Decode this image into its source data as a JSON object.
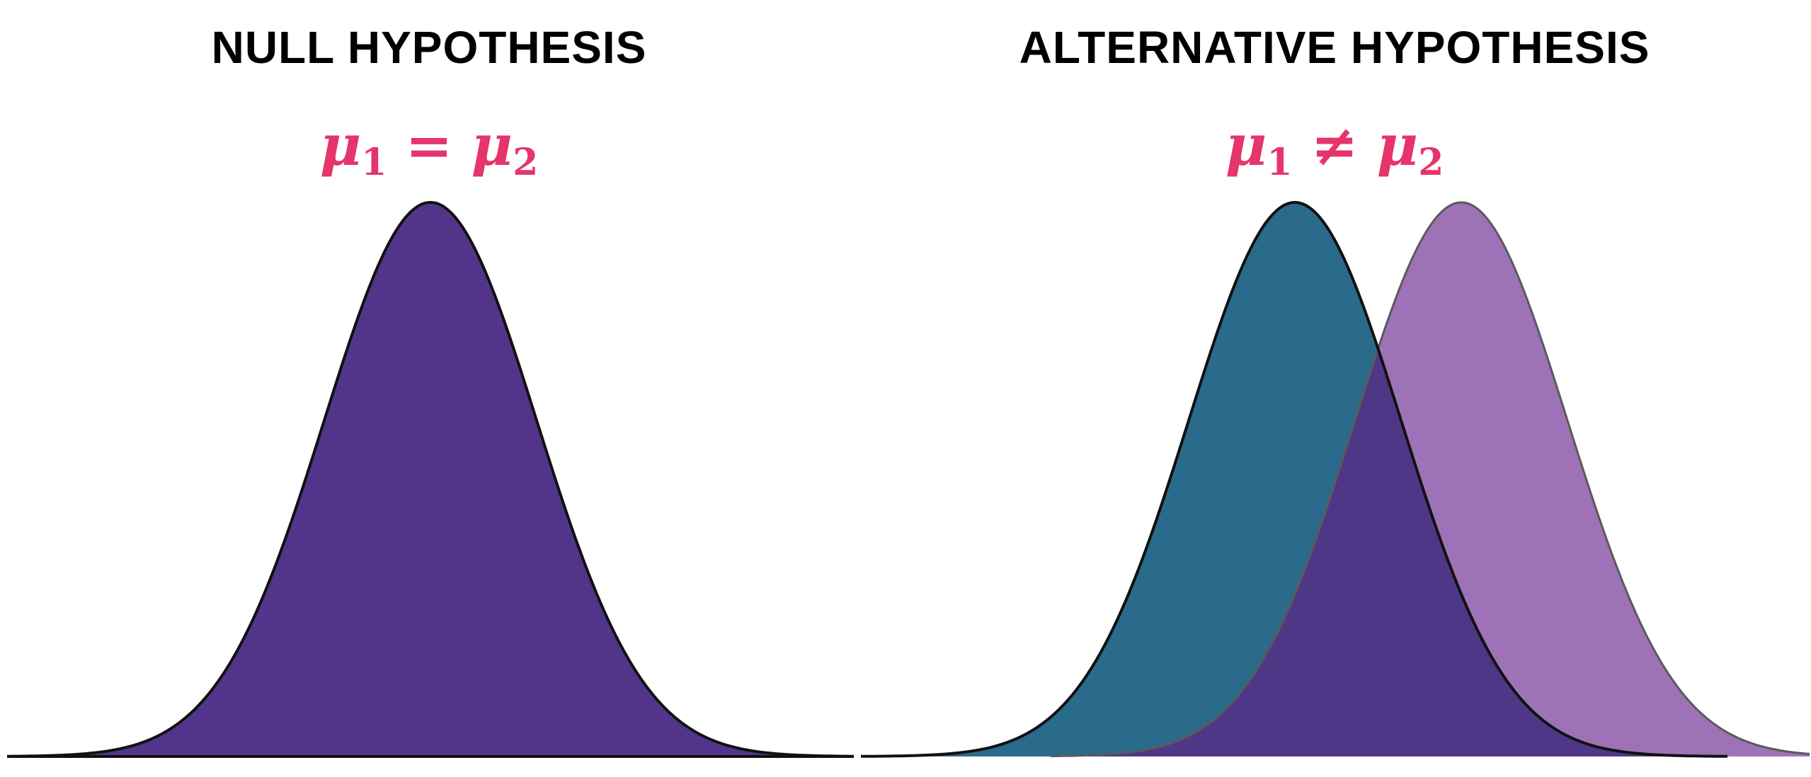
{
  "colors": {
    "formula": "#e5356b",
    "null_fill": "#52358a",
    "alt_fill_1": "#2a6a8a",
    "alt_fill_2": "#9e72b6",
    "overlap_fill": "#4e3787",
    "outline": "#111111"
  },
  "null_panel": {
    "title": "NULL HYPOTHESIS",
    "formula": {
      "mu": "μ",
      "sub1": "1",
      "operator": "=",
      "sub2": "2"
    }
  },
  "alt_panel": {
    "title": "ALTERNATIVE HYPOTHESIS",
    "formula": {
      "mu": "μ",
      "sub1": "1",
      "operator": "≠",
      "sub2": "2"
    }
  }
}
